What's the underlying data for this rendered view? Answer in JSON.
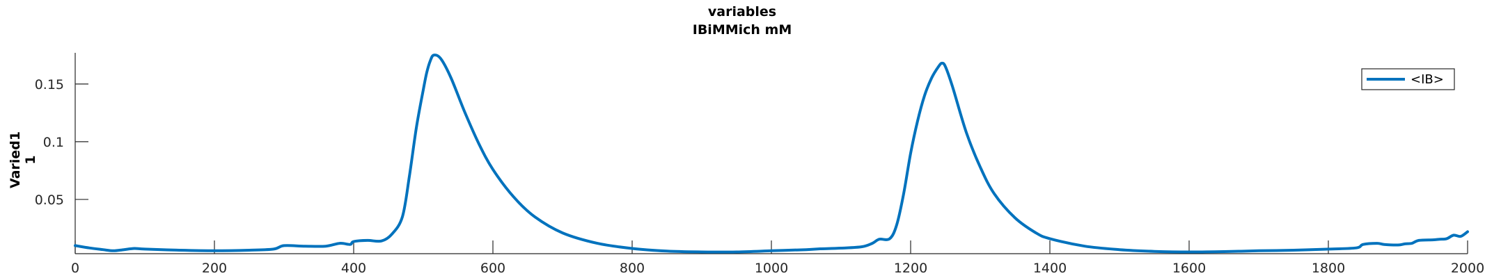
{
  "chart_data": {
    "type": "line",
    "title": "variables",
    "subtitle": "IBiMMich mM",
    "ylabel_line1": "Varied1",
    "ylabel_line2": "1",
    "xlim": [
      0,
      2000
    ],
    "ylim": [
      0.003,
      0.177
    ],
    "xticks": [
      0,
      200,
      400,
      600,
      800,
      1000,
      1200,
      1400,
      1600,
      1800,
      2000
    ],
    "xtick_labels": [
      "0",
      "200",
      "400",
      "600",
      "800",
      "1000",
      "1200",
      "1400",
      "1600",
      "1800",
      "2000"
    ],
    "yticks": [
      0.05,
      0.1,
      0.15
    ],
    "ytick_labels": [
      "0.05",
      "0.1",
      "0.15"
    ],
    "grid": false,
    "legend_position": "top-right",
    "color": "#0072BD",
    "series": [
      {
        "name": "<IB>",
        "x": [
          0,
          20,
          40,
          55,
          70,
          85,
          100,
          150,
          200,
          250,
          285,
          300,
          330,
          360,
          380,
          395,
          400,
          420,
          440,
          455,
          470,
          480,
          490,
          500,
          505,
          510,
          515,
          525,
          540,
          560,
          580,
          600,
          630,
          660,
          700,
          750,
          800,
          850,
          900,
          950,
          1000,
          1050,
          1070,
          1100,
          1130,
          1145,
          1155,
          1170,
          1180,
          1190,
          1200,
          1210,
          1220,
          1230,
          1240,
          1245,
          1250,
          1260,
          1280,
          1300,
          1320,
          1350,
          1380,
          1400,
          1450,
          1500,
          1550,
          1600,
          1650,
          1700,
          1750,
          1800,
          1840,
          1850,
          1870,
          1880,
          1900,
          1910,
          1920,
          1930,
          1950,
          1960,
          1970,
          1980,
          1990,
          2000
        ],
        "y": [
          0.01,
          0.008,
          0.0065,
          0.0055,
          0.0065,
          0.0075,
          0.007,
          0.006,
          0.0055,
          0.006,
          0.007,
          0.01,
          0.0095,
          0.0095,
          0.012,
          0.011,
          0.0135,
          0.0145,
          0.014,
          0.02,
          0.035,
          0.07,
          0.112,
          0.145,
          0.16,
          0.17,
          0.175,
          0.172,
          0.155,
          0.125,
          0.098,
          0.076,
          0.052,
          0.035,
          0.021,
          0.012,
          0.0075,
          0.0052,
          0.0045,
          0.0045,
          0.0055,
          0.0065,
          0.0072,
          0.0078,
          0.009,
          0.012,
          0.0155,
          0.016,
          0.028,
          0.055,
          0.09,
          0.118,
          0.14,
          0.155,
          0.165,
          0.168,
          0.165,
          0.148,
          0.108,
          0.078,
          0.055,
          0.034,
          0.021,
          0.016,
          0.0095,
          0.0065,
          0.005,
          0.0045,
          0.0048,
          0.0055,
          0.006,
          0.007,
          0.008,
          0.011,
          0.012,
          0.011,
          0.0105,
          0.0115,
          0.012,
          0.0145,
          0.015,
          0.0155,
          0.016,
          0.019,
          0.018,
          0.022
        ]
      }
    ]
  }
}
